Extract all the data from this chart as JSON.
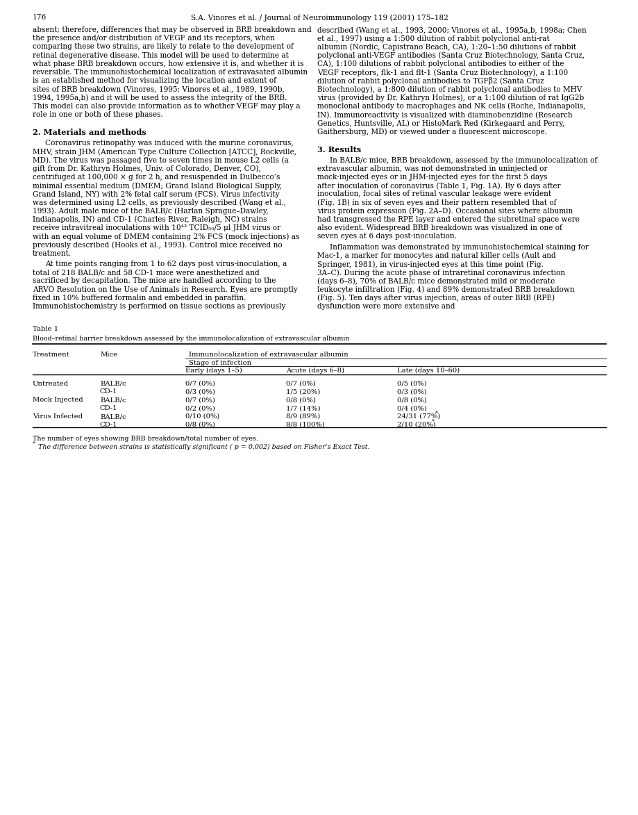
{
  "page_number": "176",
  "header": "S.A. Vinores et al. / Journal of Neuroimmunology 119 (2001) 175–182",
  "background_color": "#ffffff",
  "left_col_paras": [
    {
      "type": "body",
      "indent": false,
      "text": "absent; therefore, differences that may be observed in BRB breakdown and the presence and/or distribution of VEGF and its receptors, when comparing these two strains, are likely to relate to the development of retinal degenerative disease. This model will be used to determine at what phase BRB breakdown occurs, how extensive it is, and whether it is reversible. The immunohistochemical localization of extravasated albumin is an established method for visualizing the location and extent of sites of BRB breakdown (Vinores, 1995; Vinores et al., 1989, 1990b, 1994, 1995a,b) and it will be used to assess the integrity of the BRB. This model can also provide information as to whether VEGF may play a role in one or both of these phases."
    },
    {
      "type": "section",
      "text": "2. Materials and methods"
    },
    {
      "type": "body",
      "indent": true,
      "text": "Coronavirus retinopathy was induced with the murine coronavirus, MHV, strain JHM (American Type Culture Collection [ATCC], Rockville, MD). The virus was passaged five to seven times in mouse L2 cells (a gift from Dr. Kathryn Holmes, Univ. of Colorado, Denver, CO), centrifuged at 100,000 × g for 2 h, and resuspended in Dulbecco’s minimal essential medium (DMEM; Grand Island Biological Supply, Grand Island, NY) with 2% fetal calf serum (FCS). Virus infectivity was determined using L2 cells, as previously described (Wang et al., 1993). Adult male mice of the BALB/c (Harlan Sprague–Dawley, Indianapolis, IN) and CD-1 (Charles River, Raleigh, NC) strains receive intravitreal inoculations with 10⁴³ TCID₅₀/5 μl JHM virus or with an equal volume of DMEM containing 2% FCS (mock injections) as previously described (Hooks et al., 1993). Control mice received no treatment."
    },
    {
      "type": "body",
      "indent": true,
      "text": "At time points ranging from 1 to 62 days post virus-inoculation, a total of 218 BALB/c and 58 CD-1 mice were anesthetized and sacrificed by decapitation. The mice are handled according to the ARVO Resolution on the Use of Animals in Research. Eyes are promptly fixed in 10% buffered formalin and embedded in paraffin. Immunohistochemistry is performed on tissue sections as previously"
    }
  ],
  "right_col_paras": [
    {
      "type": "body",
      "indent": false,
      "text": "described (Wang et al., 1993, 2000; Vinores et al., 1995a,b, 1998a; Chen et al., 1997) using a 1:500 dilution of rabbit polyclonal anti-rat albumin (Nordic, Capistrano Beach, CA), 1:20–1:50 dilutions of rabbit polyclonal anti-VEGF antibodies (Santa Cruz Biotechnology, Santa Cruz, CA), 1:100 dilutions of rabbit polyclonal antibodies to either of the VEGF receptors, flk-1 and flt-1 (Santa Cruz Biotechnology), a 1:100 dilution of rabbit polyclonal antibodies to TGFβ2 (Santa Cruz Biotechnology), a 1:800 dilution of rabbit polyclonal antibodies to MHV virus (provided by Dr. Kathryn Holmes), or a 1:100 dilution of rat IgG2b monoclonal antibody to macrophages and NK cells (Roche, Indianapolis, IN). Immunoreactivity is visualized with diaminobenzidine (Research Genetics, Huntsville, AL) or HistoMark Red (Kirkegaard and Perry, Gaithersburg, MD) or viewed under a fluorescent microscope."
    },
    {
      "type": "section",
      "text": "3. Results"
    },
    {
      "type": "body",
      "indent": true,
      "text": "In BALB/c mice, BRB breakdown, assessed by the immunolocalization of extravascular albumin, was not demonstrated in uninjected or mock-injected eyes or in JHM-injected eyes for the first 5 days after inoculation of coronavirus (Table 1, Fig. 1A). By 6 days after inoculation, focal sites of retinal vascular leakage were evident (Fig. 1B) in six of seven eyes and their pattern resembled that of virus protein expression (Fig. 2A–D). Occasional sites where albumin had transgressed the RPE layer and entered the subretinal space were also evident. Widespread BRB breakdown was visualized in one of seven eyes at 6 days post-inoculation."
    },
    {
      "type": "body",
      "indent": true,
      "text": "Inflammation was demonstrated by immunohistochemical staining for Mac-1, a marker for monocytes and natural killer cells (Ault and Springer, 1981), in virus-injected eyes at this time point (Fig. 3A–C). During the acute phase of intraretinal coronavirus infection (days 6–8), 70% of BALB/c mice demonstrated mild or moderate leukocyte infiltration (Fig. 4) and 89% demonstrated BRB breakdown (Fig. 5). Ten days after virus injection, areas of outer BRB (RPE) dysfunction were more extensive and"
    }
  ],
  "table_title": "Table 1",
  "table_caption": "Blood–retinal barrier breakdown assessed by the immunolocalization of extravascular albumin",
  "table_rows": [
    [
      "Untreated",
      "BALB/c",
      "0/7 (0%)",
      "0/7 (0%)",
      "0/5 (0%)"
    ],
    [
      "",
      "CD-1",
      "0/3 (0%)",
      "1/5 (20%)",
      "0/3 (0%)"
    ],
    [
      "Mock Injected",
      "BALB/c",
      "0/7 (0%)",
      "0/8 (0%)",
      "0/8 (0%)"
    ],
    [
      "",
      "CD-1",
      "0/2 (0%)",
      "1/7 (14%)",
      "0/4 (0%)"
    ],
    [
      "Virus Infected",
      "BALB/c",
      "0/10 (0%)",
      "8/9 (89%)",
      "24/31 (77%)"
    ],
    [
      "",
      "CD-1",
      "0/8 (0%)",
      "8/8 (100%)",
      "2/10 (20%)"
    ]
  ],
  "table_footnote1": "The number of eyes showing BRB breakdown/total number of eyes.",
  "table_footnote2": "The difference between strains is statistically significant ( p = 0.002) based on Fisher’s Exact Test."
}
